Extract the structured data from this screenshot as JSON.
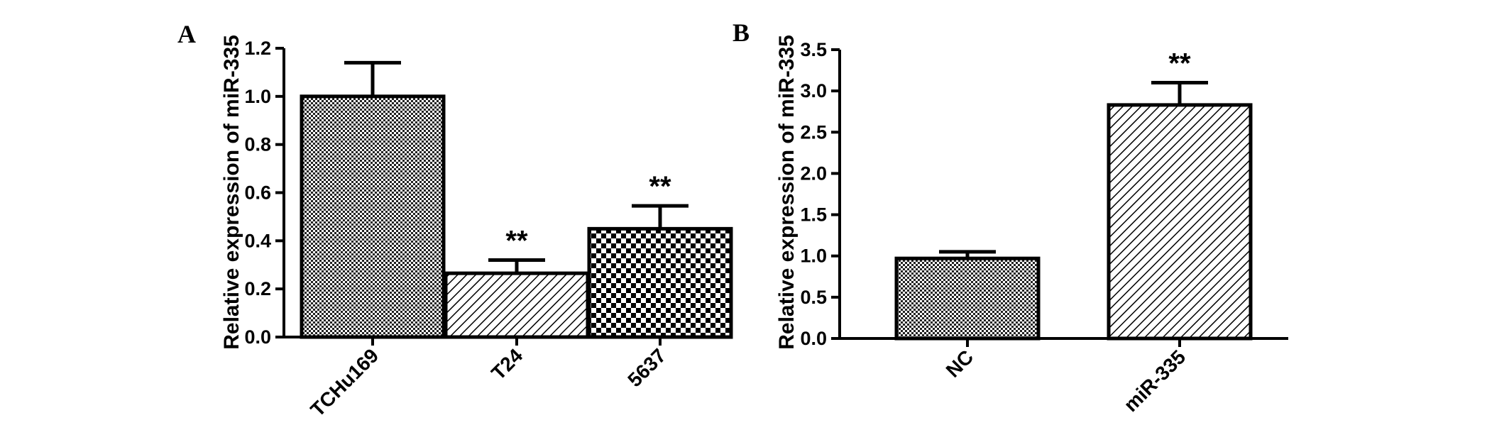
{
  "chart_data": [
    {
      "type": "bar",
      "panel": "A",
      "ylabel": "Relative  expression of miR-335",
      "ylim": [
        0,
        1.2
      ],
      "yticks": [
        "0.0",
        "0.2",
        "0.4",
        "0.6",
        "0.8",
        "1.0",
        "1.2"
      ],
      "categories": [
        "TCHu169",
        "T24",
        "5637"
      ],
      "values": [
        1.0,
        0.265,
        0.45
      ],
      "errors": [
        0.14,
        0.055,
        0.095
      ],
      "significance": [
        "",
        "**",
        "**"
      ],
      "patterns": [
        "fine-check",
        "hatch",
        "coarse-check"
      ]
    },
    {
      "type": "bar",
      "panel": "B",
      "ylabel": "Relative  expression of miR-335",
      "ylim": [
        0,
        3.5
      ],
      "yticks": [
        "0.0",
        "0.5",
        "1.0",
        "1.5",
        "2.0",
        "2.5",
        "3.0",
        "3.5"
      ],
      "categories": [
        "NC",
        "miR-335"
      ],
      "values": [
        0.97,
        2.83
      ],
      "errors": [
        0.08,
        0.27
      ],
      "significance": [
        "",
        "**"
      ],
      "patterns": [
        "fine-check",
        "hatch"
      ]
    }
  ]
}
